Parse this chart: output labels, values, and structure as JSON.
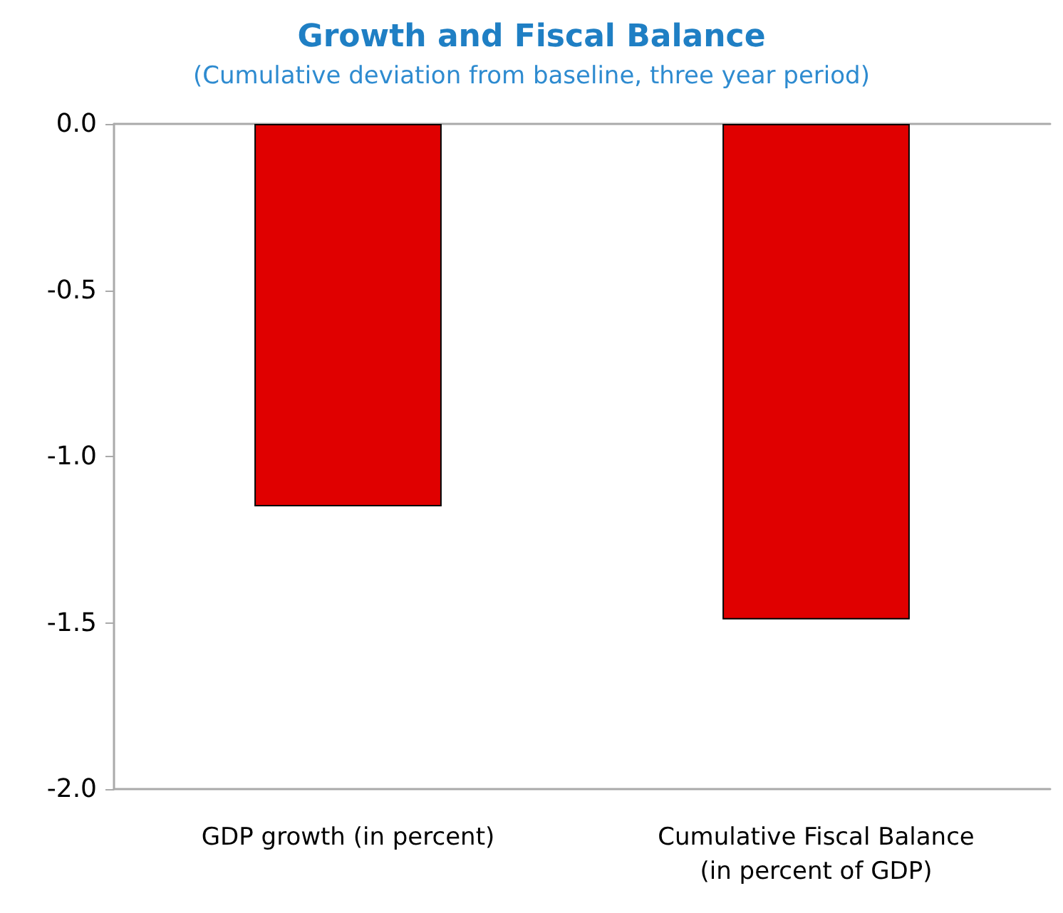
{
  "chart_data": {
    "type": "bar",
    "title": "Growth and Fiscal Balance",
    "subtitle": "(Cumulative deviation from baseline, three year period)",
    "categories": [
      "GDP growth (in percent)",
      "Cumulative Fiscal Balance\n(in percent of GDP)"
    ],
    "values": [
      -1.15,
      -1.49
    ],
    "color": "#e00000",
    "ylim": [
      -2.0,
      0.0
    ],
    "yticks": [
      {
        "value": -2.0,
        "label": "-2.0"
      },
      {
        "value": -1.5,
        "label": "-1.5"
      },
      {
        "value": -1.0,
        "label": "-1.0"
      },
      {
        "value": -0.5,
        "label": "-0.5"
      },
      {
        "value": 0,
        "label": "0.0"
      }
    ],
    "grid": false
  }
}
